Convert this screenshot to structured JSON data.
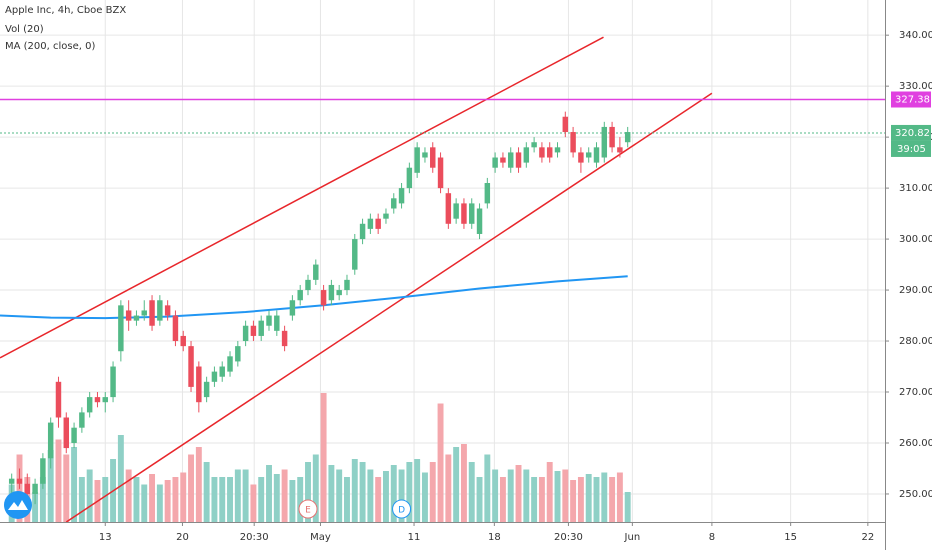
{
  "chart_data": {
    "type": "candlestick",
    "title": "Apple Inc, 4h, Cboe BZX",
    "indicators": [
      "Vol (20)",
      "MA (200, close, 0)"
    ],
    "x": [
      0,
      1,
      2,
      3,
      4,
      5,
      6,
      7,
      8,
      9,
      10,
      11,
      12,
      13,
      14,
      15,
      16,
      17,
      18,
      19,
      20,
      21,
      22,
      23,
      24,
      25,
      26,
      27,
      28,
      29,
      30,
      31,
      32,
      33,
      34,
      35,
      36,
      37,
      38,
      39,
      40,
      41,
      42,
      43,
      44,
      45,
      46,
      47,
      48,
      49,
      50,
      51,
      52,
      53,
      54,
      55,
      56,
      57,
      58,
      59,
      60,
      61,
      62,
      63,
      64,
      65,
      66,
      67,
      68,
      69,
      70,
      71,
      72,
      73,
      74,
      75,
      76,
      77,
      78,
      79
    ],
    "open": [
      252,
      253,
      252,
      250,
      252,
      257,
      272,
      265,
      260,
      263,
      266,
      269,
      268,
      269,
      278,
      286,
      284,
      285,
      288,
      284,
      287,
      285,
      281,
      279,
      275,
      269,
      272,
      273,
      274,
      276,
      280,
      283,
      281,
      283,
      282,
      282,
      285,
      288,
      290,
      292,
      290,
      288,
      289,
      290,
      294,
      300,
      302,
      304,
      304,
      306,
      307,
      310,
      313,
      316,
      318,
      316,
      309,
      304,
      307,
      303,
      301,
      307,
      314,
      316,
      314,
      317,
      315,
      318,
      318,
      318,
      317,
      324,
      321,
      317,
      316,
      315,
      316,
      322,
      318,
      319
    ],
    "high": [
      254,
      255,
      254,
      253,
      258,
      265,
      273,
      266,
      264,
      267,
      270,
      270,
      270,
      276,
      288,
      288,
      286,
      288,
      289,
      289,
      288,
      286,
      282,
      280,
      276,
      273,
      275,
      276,
      278,
      280,
      284,
      284,
      285,
      286,
      286,
      283,
      289,
      291,
      293,
      296,
      291,
      292,
      291,
      293,
      301,
      304,
      305,
      305,
      306,
      309,
      311,
      315,
      319,
      318,
      319,
      317,
      310,
      308,
      308,
      308,
      307,
      312,
      317,
      317,
      318,
      318,
      319,
      320,
      319,
      319,
      319,
      325,
      322,
      318,
      318,
      319,
      323,
      323,
      320,
      322
    ],
    "low": [
      250,
      251,
      249,
      248,
      251,
      255,
      263,
      258,
      259,
      262,
      265,
      267,
      266,
      268,
      276,
      282,
      283,
      284,
      282,
      283,
      284,
      279,
      278,
      270,
      266,
      268,
      271,
      272,
      273,
      275,
      279,
      280,
      280,
      282,
      281,
      278,
      284,
      287,
      289,
      291,
      286,
      287,
      288,
      289,
      293,
      299,
      301,
      301,
      303,
      305,
      306,
      309,
      312,
      315,
      313,
      309,
      302,
      303,
      302,
      302,
      300,
      306,
      313,
      314,
      313,
      313,
      314,
      317,
      315,
      315,
      316,
      320,
      316,
      313,
      315,
      314,
      315,
      317,
      316,
      318
    ],
    "close": [
      253,
      252,
      250,
      252,
      257,
      264,
      265,
      259,
      263,
      266,
      269,
      268,
      269,
      275,
      287,
      284,
      285,
      286,
      283,
      288,
      285,
      280,
      279,
      271,
      268,
      272,
      274,
      275,
      277,
      279,
      283,
      281,
      284,
      285,
      285,
      279,
      288,
      290,
      292,
      295,
      287,
      291,
      290,
      292,
      300,
      303,
      304,
      302,
      305,
      308,
      310,
      314,
      318,
      317,
      314,
      310,
      303,
      307,
      303,
      307,
      306,
      311,
      316,
      315,
      317,
      314,
      318,
      319,
      316,
      316,
      318,
      321,
      317,
      315,
      317,
      318,
      322,
      318,
      317,
      321
    ],
    "up_color": "#53b987",
    "down_color": "#eb4d5c",
    "volume": {
      "values": [
        25,
        45,
        30,
        20,
        30,
        48,
        55,
        45,
        50,
        30,
        35,
        28,
        30,
        42,
        58,
        35,
        30,
        25,
        32,
        25,
        28,
        30,
        33,
        45,
        50,
        40,
        30,
        30,
        30,
        35,
        35,
        25,
        30,
        38,
        32,
        35,
        28,
        30,
        40,
        45,
        86,
        38,
        35,
        30,
        42,
        40,
        35,
        30,
        34,
        38,
        35,
        40,
        42,
        33,
        40,
        79,
        45,
        50,
        52,
        40,
        30,
        45,
        35,
        30,
        35,
        38,
        35,
        30,
        30,
        40,
        34,
        35,
        28,
        30,
        32,
        30,
        33,
        30,
        33,
        20
      ],
      "vlim": [
        0,
        100
      ],
      "up_color": "#8fd0c6",
      "down_color": "#f4a7ac"
    },
    "ma": {
      "x": [
        -1.5,
        5,
        12,
        20,
        30,
        40,
        50,
        60,
        70,
        79
      ],
      "values": [
        285,
        284.6,
        284.5,
        284.8,
        285.7,
        287,
        288.6,
        290.3,
        291.7,
        292.7
      ],
      "color": "#2196f3"
    },
    "trend_lines": [
      {
        "points": [
          [
            -1.5,
            276.7
          ],
          [
            75.9,
            339.6
          ]
        ],
        "color": "#e8262b"
      },
      {
        "points": [
          [
            7,
            244.5
          ],
          [
            89.8,
            328.6
          ]
        ],
        "color": "#e8262b"
      }
    ],
    "hlines": [
      {
        "value": 327.38,
        "color": "#e040e0",
        "dashed": false
      },
      {
        "value": 320.82,
        "color": "#53b987",
        "dashed": true
      }
    ],
    "countdown": "39:05",
    "events": [
      {
        "x": 38,
        "label": "E"
      },
      {
        "x": 50,
        "label": "D"
      }
    ],
    "xlim": [
      -1.5,
      112
    ],
    "ylim": [
      244.5,
      346.9
    ],
    "xticks": [
      {
        "value": 12,
        "label": "13"
      },
      {
        "value": 21.9,
        "label": "20"
      },
      {
        "value": 31.1,
        "label": "20:30"
      },
      {
        "value": 39.6,
        "label": "May"
      },
      {
        "value": 51.6,
        "label": "11"
      },
      {
        "value": 61.9,
        "label": "18"
      },
      {
        "value": 71.4,
        "label": "20:30"
      },
      {
        "value": 79.6,
        "label": "Jun"
      },
      {
        "value": 89.8,
        "label": "8"
      },
      {
        "value": 99.9,
        "label": "15"
      },
      {
        "value": 109.8,
        "label": "22"
      }
    ],
    "yticks": [
      {
        "value": 250,
        "label": "250.00"
      },
      {
        "value": 260,
        "label": "260.00"
      },
      {
        "value": 270,
        "label": "270.00"
      },
      {
        "value": 280,
        "label": "280.00"
      },
      {
        "value": 290,
        "label": "290.00"
      },
      {
        "value": 300,
        "label": "300.00"
      },
      {
        "value": 310,
        "label": "310.00"
      },
      {
        "value": 320,
        "label": "320.00"
      },
      {
        "value": 330,
        "label": "330.00"
      },
      {
        "value": 340,
        "label": "340.00"
      }
    ],
    "grid": true
  }
}
